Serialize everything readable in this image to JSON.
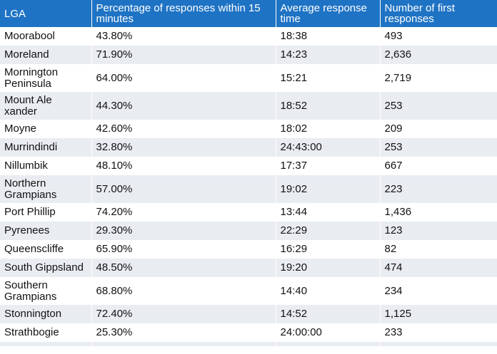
{
  "table": {
    "headers": [
      "LGA",
      "Percentage of responses within 15 minutes",
      "Average response time",
      "Number of first responses"
    ],
    "rows": [
      [
        "Moorabool",
        "43.80%",
        "18:38",
        "493"
      ],
      [
        "Moreland",
        "71.90%",
        "14:23",
        "2,636"
      ],
      [
        "Mornington Peninsula",
        "64.00%",
        "15:21",
        "2,719"
      ],
      [
        "Mount Ale xander",
        "44.30%",
        "18:52",
        "253"
      ],
      [
        "Moyne",
        "42.60%",
        "18:02",
        "209"
      ],
      [
        "Murrindindi",
        "32.80%",
        "24:43:00",
        "253"
      ],
      [
        "Nillumbik",
        "48.10%",
        "17:37",
        "667"
      ],
      [
        "Northern Grampians",
        "57.00%",
        "19:02",
        "223"
      ],
      [
        "Port Phillip",
        "74.20%",
        "13:44",
        "1,436"
      ],
      [
        "Pyrenees",
        "29.30%",
        "22:29",
        "123"
      ],
      [
        "Queenscliffe",
        "65.90%",
        "16:29",
        "82"
      ],
      [
        "South Gippsland",
        "48.50%",
        "19:20",
        "474"
      ],
      [
        "Southern Grampians",
        "68.80%",
        "14:40",
        "234"
      ],
      [
        "Stonnington",
        "72.40%",
        "14:52",
        "1,125"
      ],
      [
        "Strathbogie",
        "25.30%",
        "24:00:00",
        "233"
      ]
    ]
  },
  "colors": {
    "header_bg": "#1f73c4",
    "stripe": "#e9ecf1"
  }
}
